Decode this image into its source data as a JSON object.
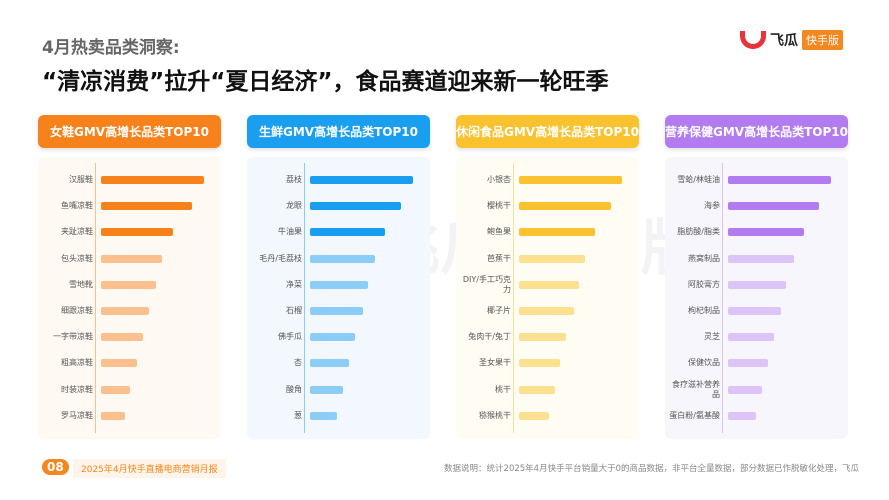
{
  "header": {
    "subtitle": "4月热卖品类洞察:",
    "title": "“清凉消费”拉升“夏日经济”，食品赛道迎来新一轮旺季"
  },
  "logo": {
    "name": "飞瓜",
    "tag": "快手版"
  },
  "watermark": "飞瓜 快手版",
  "panels": [
    {
      "title": "女鞋GMV高增长品类TOP10",
      "color": "#f7821b",
      "light": "#fbc08d",
      "bg": "#fff9f3",
      "items": [
        "汉服鞋",
        "鱼嘴凉鞋",
        "夹趾凉鞋",
        "包头凉鞋",
        "雪地靴",
        "细跟凉鞋",
        "一字带凉鞋",
        "粗高凉鞋",
        "时装凉鞋",
        "罗马凉鞋"
      ],
      "relative_values": [
        100,
        88,
        70,
        59,
        53,
        47,
        41,
        35,
        28,
        23
      ]
    },
    {
      "title": "生鲜GMV高增长品类TOP10",
      "color": "#1a9ff0",
      "light": "#8ccdf8",
      "bg": "#f2f8fe",
      "items": [
        "荔枝",
        "龙眼",
        "牛油果",
        "毛丹/毛荔枝",
        "净菜",
        "石榴",
        "佛手瓜",
        "杏",
        "酸角",
        "葱"
      ],
      "relative_values": [
        100,
        88,
        73,
        63,
        56,
        51,
        44,
        38,
        32,
        26
      ]
    },
    {
      "title": "休闲食品GMV高增长品类TOP10",
      "color": "#f9c22e",
      "light": "#fbe08f",
      "bg": "#fffcf3",
      "items": [
        "小银杏",
        "樱桃干",
        "鲍鱼果",
        "芭蕉干",
        "DIY/手工巧克力",
        "椰子片",
        "兔肉干/兔丁",
        "圣女果干",
        "桃干",
        "猕猴桃干"
      ],
      "relative_values": [
        100,
        89,
        74,
        64,
        58,
        53,
        46,
        40,
        35,
        29
      ]
    },
    {
      "title": "营养保健GMV高增长品类TOP10",
      "color": "#b27cf0",
      "light": "#dcc4f8",
      "bg": "#f8f6fd",
      "items": [
        "雪蛤/林蛙油",
        "海参",
        "脂肪酸/脂类",
        "燕窝制品",
        "阿胶膏方",
        "枸杞制品",
        "灵芝",
        "保健饮品",
        "食疗滋补营养品",
        "蛋白粉/氨基酸"
      ],
      "relative_values": [
        100,
        88,
        74,
        64,
        56,
        51,
        45,
        39,
        33,
        27
      ]
    }
  ],
  "footer": {
    "page": "08",
    "report": "2025年4月快手直播电商营销月报",
    "note": "数据说明：统计2025年4月快手平台销量大于0的商品数据，非平台全量数据，部分数据已作脱敏化处理，飞瓜"
  }
}
